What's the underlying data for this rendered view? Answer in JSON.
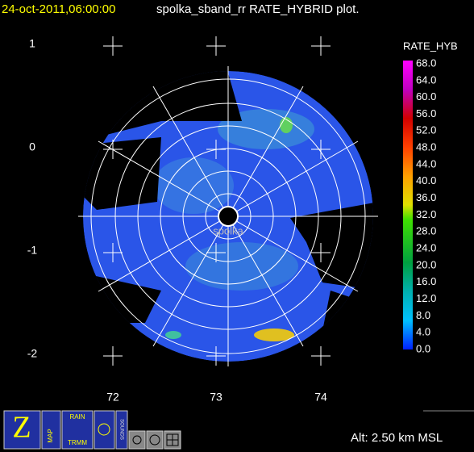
{
  "header": {
    "date": "24-oct-2011,06:00:00",
    "title": "spolka_sband_rr RATE_HYBRID  plot."
  },
  "colorbar": {
    "title": "RATE_HYB",
    "labels": [
      "68.0",
      "64.0",
      "60.0",
      "56.0",
      "52.0",
      "48.0",
      "44.0",
      "40.0",
      "36.0",
      "32.0",
      "28.0",
      "24.0",
      "20.0",
      "16.0",
      "12.0",
      "8.0",
      "4.0",
      "0.0"
    ]
  },
  "axes": {
    "y_labels": [
      "1",
      "0",
      "-1",
      "-2"
    ],
    "x_labels": [
      "72",
      "73",
      "74"
    ]
  },
  "station": "spolka",
  "altitude": "Alt: 2.50 km MSL",
  "toolbar": {
    "map": "MAP",
    "rain": "RAIN",
    "trmm": "TRMM",
    "sounds": "SOUNDS"
  }
}
